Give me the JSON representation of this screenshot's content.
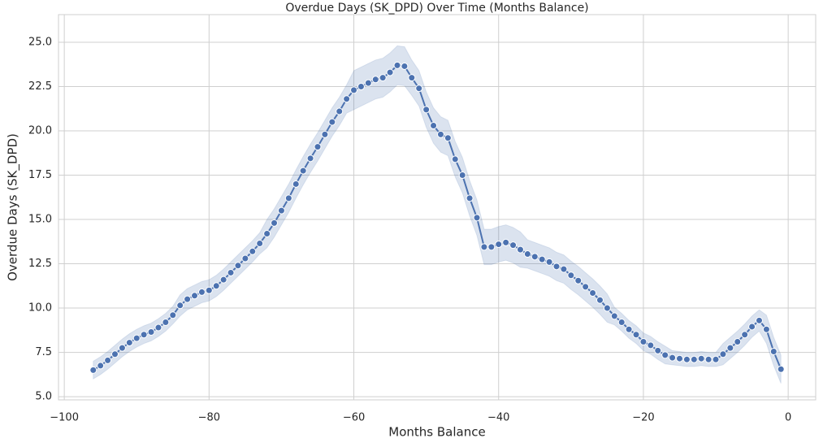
{
  "chart_data": {
    "type": "line",
    "title": "Overdue Days (SK_DPD) Over Time (Months Balance)",
    "x_label": "Months Balance",
    "y_label": "Overdue Days (SK_DPD)",
    "grid": true,
    "xlim": [
      -100.8,
      3.8
    ],
    "ylim": [
      4.82,
      26.56
    ],
    "xticks": [
      {
        "value": -100,
        "label": "−100"
      },
      {
        "value": -80,
        "label": "−80"
      },
      {
        "value": -60,
        "label": "−60"
      },
      {
        "value": -40,
        "label": "−40"
      },
      {
        "value": -20,
        "label": "−20"
      },
      0
    ],
    "yticks": [
      {
        "value": 5,
        "label": "5.0"
      },
      7.5,
      {
        "value": 10,
        "label": "10.0"
      },
      12.5,
      {
        "value": 15,
        "label": "15.0"
      },
      17.5,
      {
        "value": 20,
        "label": "20.0"
      },
      22.5,
      {
        "value": 25,
        "label": "25.0"
      }
    ],
    "x": [
      -96,
      -95,
      -94,
      -93,
      -92,
      -91,
      -90,
      -89,
      -88,
      -87,
      -86,
      -85,
      -84,
      -83,
      -82,
      -81,
      -80,
      -79,
      -78,
      -77,
      -76,
      -75,
      -74,
      -73,
      -72,
      -71,
      -70,
      -69,
      -68,
      -67,
      -66,
      -65,
      -64,
      -63,
      -62,
      -61,
      -60,
      -59,
      -58,
      -57,
      -56,
      -55,
      -54,
      -53,
      -52,
      -51,
      -50,
      -49,
      -48,
      -47,
      -46,
      -45,
      -44,
      -43,
      -42,
      -41,
      -40,
      -39,
      -38,
      -37,
      -36,
      -35,
      -34,
      -33,
      -32,
      -31,
      -30,
      -29,
      -28,
      -27,
      -26,
      -25,
      -24,
      -23,
      -22,
      -21,
      -20,
      -19,
      -18,
      -17,
      -16,
      -15,
      -14,
      -13,
      -12,
      -11,
      -10,
      -9,
      -8,
      -7,
      -6,
      -5,
      -4,
      -3,
      -2,
      -1
    ],
    "series": [
      {
        "color": "#4c72b0",
        "values": [
          6.5,
          6.75,
          7.05,
          7.4,
          7.75,
          8.05,
          8.3,
          8.5,
          8.65,
          8.9,
          9.2,
          9.6,
          10.15,
          10.5,
          10.7,
          10.9,
          11.0,
          11.25,
          11.6,
          12.0,
          12.4,
          12.8,
          13.2,
          13.65,
          14.2,
          14.8,
          15.5,
          16.2,
          17.0,
          17.75,
          18.45,
          19.1,
          19.8,
          20.5,
          21.1,
          21.8,
          22.3,
          22.5,
          22.7,
          22.9,
          23.0,
          23.3,
          23.7,
          23.65,
          23.0,
          22.4,
          21.2,
          20.3,
          19.8,
          19.6,
          18.4,
          17.5,
          16.2,
          15.1,
          13.45,
          13.45,
          13.6,
          13.7,
          13.55,
          13.3,
          13.05,
          12.9,
          12.75,
          12.6,
          12.35,
          12.2,
          11.85,
          11.55,
          11.2,
          10.85,
          10.45,
          10.0,
          9.55,
          9.2,
          8.8,
          8.5,
          8.1,
          7.9,
          7.6,
          7.35,
          7.2,
          7.15,
          7.1,
          7.1,
          7.15,
          7.1,
          7.1,
          7.4,
          7.75,
          8.1,
          8.5,
          8.95,
          9.3,
          8.8,
          7.55,
          6.55
        ],
        "lower": [
          6.0,
          6.25,
          6.55,
          6.9,
          7.25,
          7.55,
          7.8,
          8.0,
          8.15,
          8.4,
          8.7,
          9.1,
          9.55,
          9.9,
          10.1,
          10.3,
          10.4,
          10.65,
          11.0,
          11.4,
          11.8,
          12.2,
          12.6,
          13.05,
          13.4,
          14.0,
          14.7,
          15.4,
          16.2,
          16.95,
          17.65,
          18.3,
          19.0,
          19.7,
          20.3,
          21.0,
          21.2,
          21.4,
          21.6,
          21.8,
          21.9,
          22.2,
          22.6,
          22.55,
          22.0,
          21.4,
          20.2,
          19.3,
          18.8,
          18.6,
          17.4,
          16.5,
          15.2,
          14.1,
          12.45,
          12.45,
          12.6,
          12.7,
          12.55,
          12.3,
          12.25,
          12.1,
          11.95,
          11.8,
          11.55,
          11.4,
          11.05,
          10.75,
          10.4,
          10.05,
          9.65,
          9.2,
          9.05,
          8.7,
          8.3,
          8.0,
          7.6,
          7.4,
          7.1,
          6.85,
          6.8,
          6.75,
          6.7,
          6.7,
          6.75,
          6.7,
          6.7,
          6.8,
          7.15,
          7.5,
          7.9,
          8.35,
          8.7,
          8.0,
          6.75,
          5.75
        ],
        "upper": [
          7.0,
          7.25,
          7.55,
          7.9,
          8.25,
          8.55,
          8.8,
          9.0,
          9.15,
          9.4,
          9.7,
          10.1,
          10.75,
          11.1,
          11.3,
          11.5,
          11.6,
          11.85,
          12.2,
          12.6,
          13.0,
          13.4,
          13.8,
          14.25,
          15.0,
          15.6,
          16.3,
          17.0,
          17.8,
          18.55,
          19.25,
          19.9,
          20.6,
          21.3,
          21.9,
          22.6,
          23.4,
          23.6,
          23.8,
          24.0,
          24.1,
          24.4,
          24.8,
          24.75,
          24.0,
          23.4,
          22.2,
          21.3,
          20.8,
          20.6,
          19.4,
          18.5,
          17.2,
          16.1,
          14.45,
          14.45,
          14.6,
          14.7,
          14.55,
          14.3,
          13.85,
          13.7,
          13.55,
          13.4,
          13.15,
          13.0,
          12.65,
          12.35,
          12.0,
          11.65,
          11.25,
          10.8,
          10.05,
          9.7,
          9.3,
          9.0,
          8.6,
          8.4,
          8.1,
          7.85,
          7.6,
          7.55,
          7.5,
          7.5,
          7.55,
          7.5,
          7.5,
          8.0,
          8.35,
          8.7,
          9.1,
          9.55,
          9.9,
          9.6,
          8.35,
          7.35
        ]
      }
    ]
  }
}
